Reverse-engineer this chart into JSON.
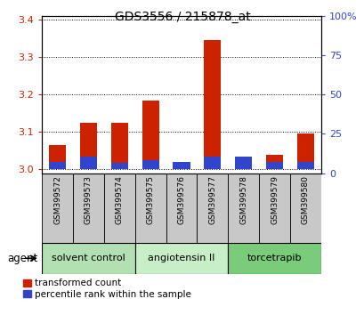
{
  "title": "GDS3556 / 215878_at",
  "samples": [
    "GSM399572",
    "GSM399573",
    "GSM399574",
    "GSM399575",
    "GSM399576",
    "GSM399577",
    "GSM399578",
    "GSM399579",
    "GSM399580"
  ],
  "red_values": [
    3.065,
    3.125,
    3.125,
    3.185,
    3.015,
    3.345,
    3.0,
    3.04,
    3.095
  ],
  "base_value": 3.0,
  "ylim_left": [
    2.99,
    3.41
  ],
  "ylim_right": [
    0,
    100
  ],
  "yticks_left": [
    3.0,
    3.1,
    3.2,
    3.3,
    3.4
  ],
  "yticks_right": [
    0,
    25,
    50,
    75,
    100
  ],
  "ytick_labels_right": [
    "0",
    "25",
    "50",
    "75",
    "100%"
  ],
  "blue_pct": [
    5,
    8,
    4,
    6,
    5,
    8,
    8,
    5,
    5
  ],
  "groups": [
    {
      "label": "solvent control",
      "indices": [
        0,
        1,
        2
      ],
      "color": "#b2e0b2"
    },
    {
      "label": "angiotensin II",
      "indices": [
        3,
        4,
        5
      ],
      "color": "#c8eec8"
    },
    {
      "label": "torcetrapib",
      "indices": [
        6,
        7,
        8
      ],
      "color": "#7acc7a"
    }
  ],
  "agent_label": "agent",
  "legend_red": "transformed count",
  "legend_blue": "percentile rank within the sample",
  "bar_width": 0.55,
  "red_color": "#cc2200",
  "blue_color": "#3344cc",
  "tick_color_left": "#cc2200",
  "tick_color_right": "#3344cc",
  "bg_color": "#ffffff",
  "group_bg": "#c8c8c8"
}
